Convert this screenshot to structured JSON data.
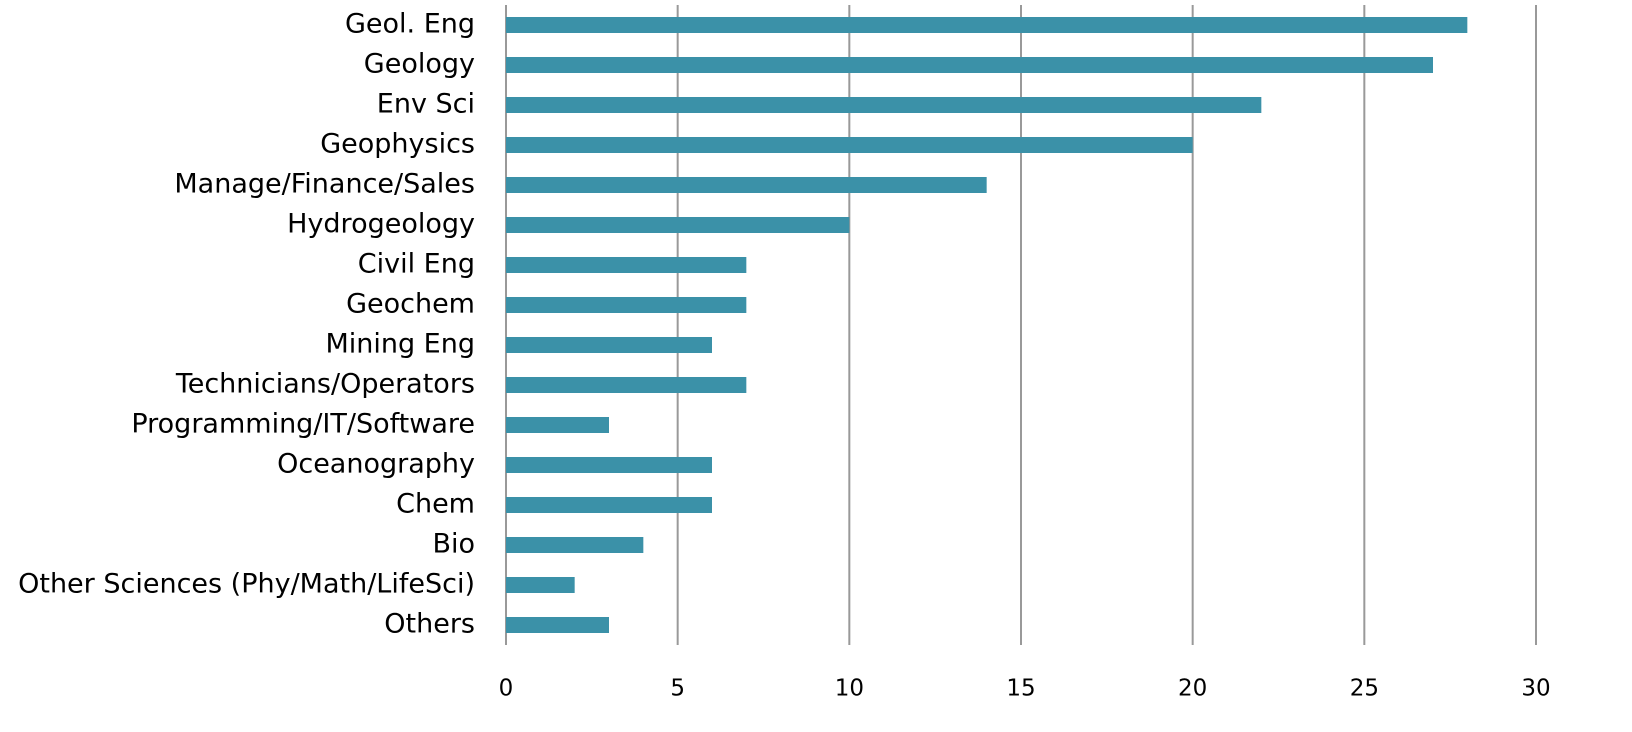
{
  "chart_data": {
    "type": "bar",
    "orientation": "horizontal",
    "categories": [
      "Geol. Eng",
      "Geology",
      "Env Sci",
      "Geophysics",
      "Manage/Finance/Sales",
      "Hydrogeology",
      "Civil Eng",
      "Geochem",
      "Mining Eng",
      "Technicians/Operators",
      "Programming/IT/Software",
      "Oceanography",
      "Chem",
      "Bio",
      "Other Sciences (Phy/Math/LifeSci)",
      "Others"
    ],
    "values": [
      28,
      27,
      22,
      20,
      14,
      10,
      7,
      7,
      6,
      7,
      3,
      6,
      6,
      4,
      2,
      3
    ],
    "color": "#3b91a8",
    "xlim": [
      0,
      30
    ],
    "xticks": [
      0,
      5,
      10,
      15,
      20,
      25,
      30
    ],
    "grid": true
  }
}
